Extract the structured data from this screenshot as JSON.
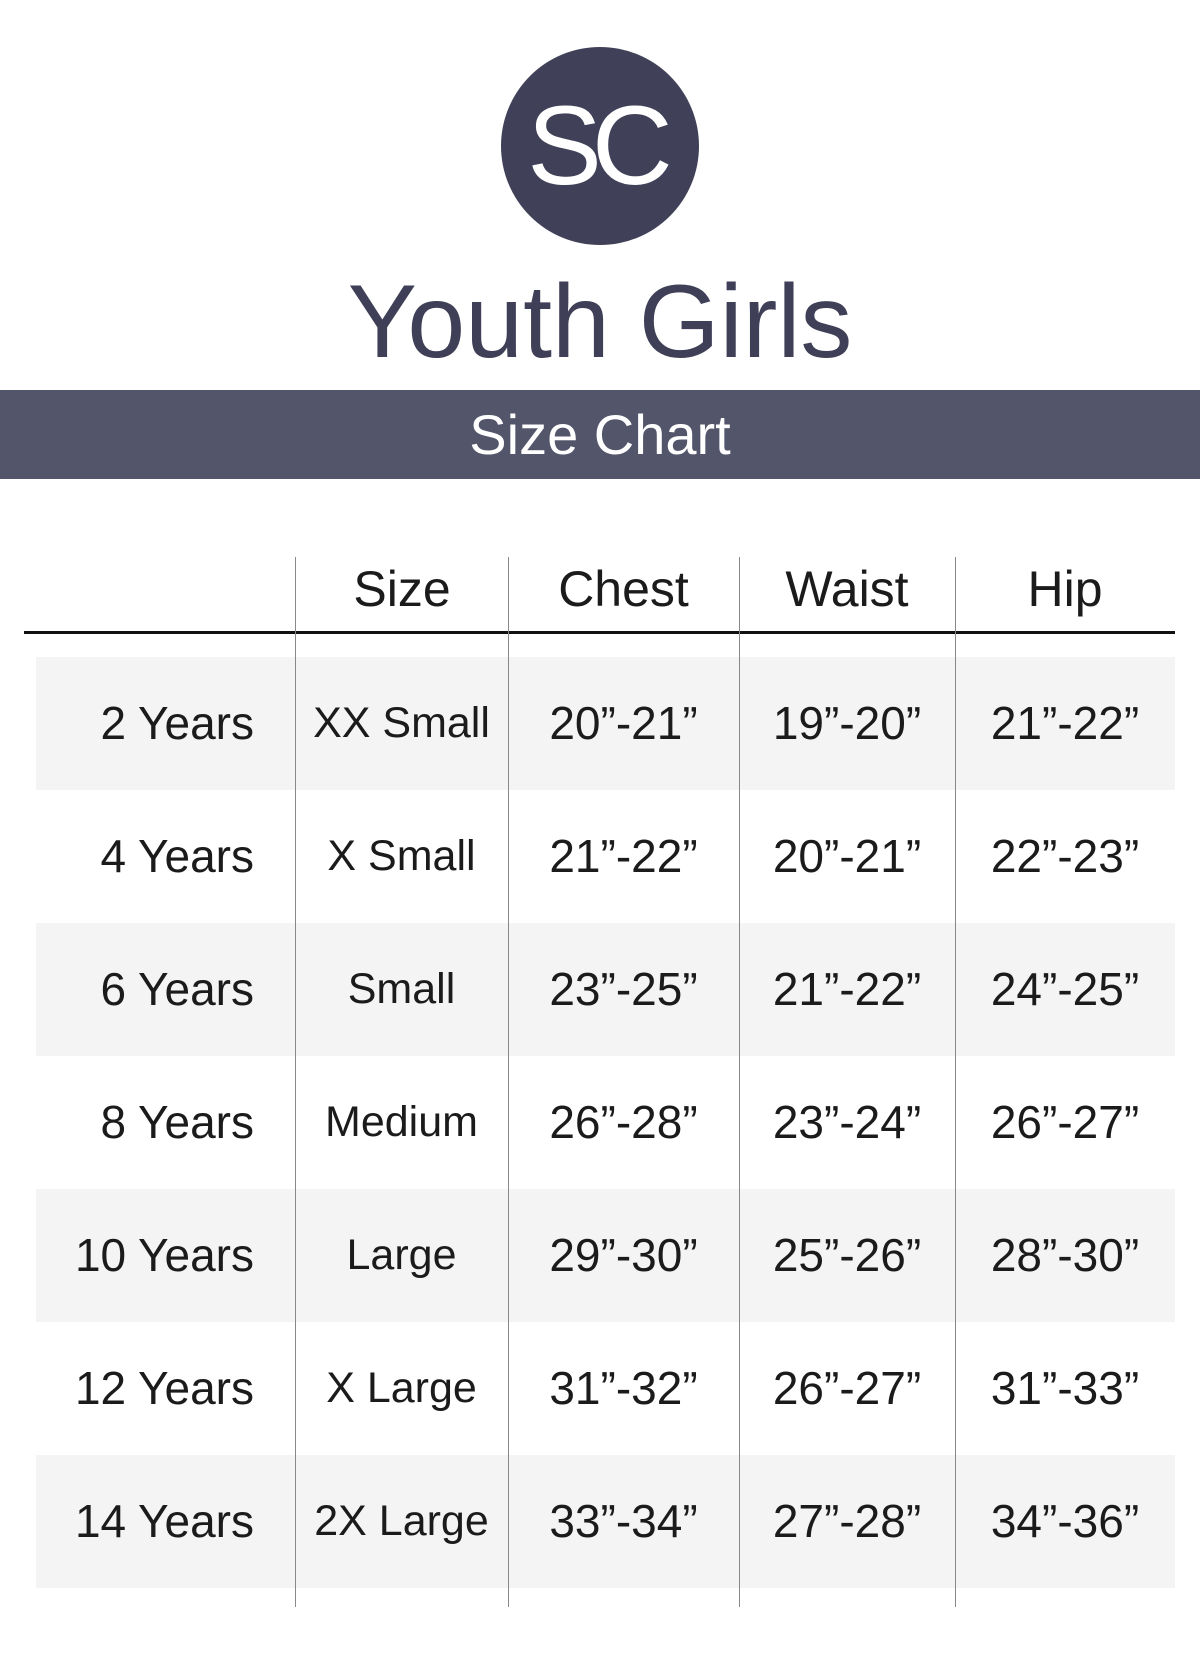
{
  "logo": {
    "text": "SC",
    "color": "#404058"
  },
  "title": "Youth Girls",
  "banner": {
    "text": "Size Chart",
    "color": "#53556b"
  },
  "table": {
    "headers": [
      "",
      "Size",
      "Chest",
      "Waist",
      "Hip"
    ],
    "rows": [
      [
        "2 Years",
        "XX Small",
        "20”-21”",
        "19”-20”",
        "21”-22”"
      ],
      [
        "4 Years",
        "X Small",
        "21”-22”",
        "20”-21”",
        "22”-23”"
      ],
      [
        "6 Years",
        "Small",
        "23”-25”",
        "21”-22”",
        "24”-25”"
      ],
      [
        "8 Years",
        "Medium",
        "26”-28”",
        "23”-24”",
        "26”-27”"
      ],
      [
        "10 Years",
        "Large",
        "29”-30”",
        "25”-26”",
        "28”-30”"
      ],
      [
        "12 Years",
        "X Large",
        "31”-32”",
        "26”-27”",
        "31”-33”"
      ],
      [
        "14 Years",
        "2X Large",
        "33”-34”",
        "27”-28”",
        "34”-36”"
      ]
    ]
  }
}
